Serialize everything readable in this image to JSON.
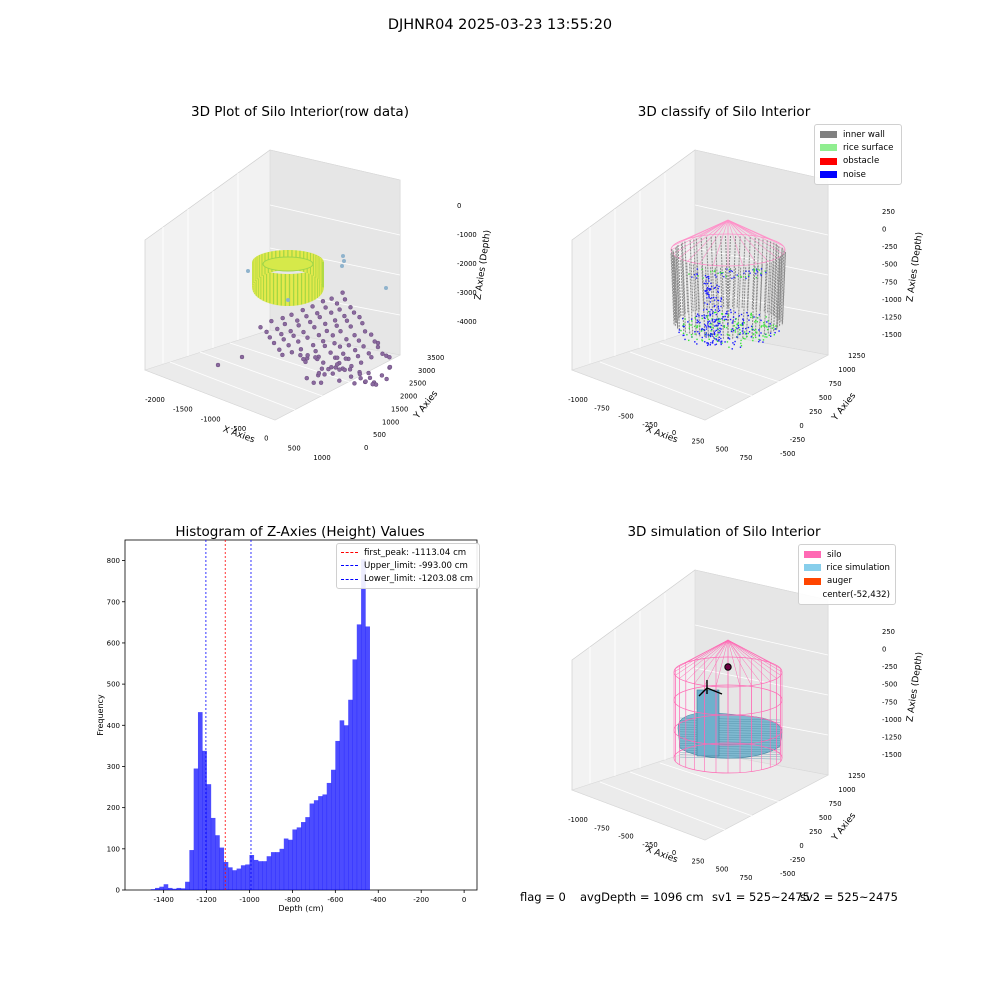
{
  "figure": {
    "suptitle": "DJHNR04 2025-03-23 13:55:20",
    "status": {
      "flag": "flag = 0",
      "avg_depth": "avgDepth = 1096 cm",
      "sv1": "sv1 = 525~2475",
      "sv2": "sv2 = 525~2475"
    }
  },
  "panels": {
    "raw": {
      "title": "3D Plot of Silo Interior(row data)",
      "xlabel": "X Axies",
      "ylabel": "Y Axies",
      "zlabel": "Z Axies (Depth)",
      "xticks": [
        "-2000",
        "-1500",
        "-1000",
        "-500",
        "0",
        "500",
        "1000"
      ],
      "yticks": [
        "0",
        "500",
        "1000",
        "1500",
        "2000",
        "2500",
        "3000",
        "3500"
      ],
      "zticks": [
        "0",
        "-1000",
        "-2000",
        "-3000",
        "-4000"
      ]
    },
    "classify": {
      "title": "3D classify of Silo Interior",
      "xlabel": "X Axies",
      "ylabel": "Y Axies",
      "zlabel": "Z Axies (Depth)",
      "xticks": [
        "-1000",
        "-750",
        "-500",
        "-250",
        "0",
        "250",
        "500",
        "750"
      ],
      "yticks": [
        "-500",
        "-250",
        "0",
        "250",
        "500",
        "750",
        "1000",
        "1250"
      ],
      "zticks": [
        "250",
        "0",
        "-250",
        "-500",
        "-750",
        "-1000",
        "-1250",
        "-1500"
      ],
      "legend": [
        {
          "label": "inner wall",
          "color": "#808080"
        },
        {
          "label": "rice surface",
          "color": "#90ee90"
        },
        {
          "label": "obstacle",
          "color": "#ff0000"
        },
        {
          "label": "noise",
          "color": "#0000ff"
        }
      ]
    },
    "simulation": {
      "title": "3D simulation of Silo Interior",
      "xlabel": "X Axies",
      "ylabel": "Y Axies",
      "zlabel": "Z Axies (Depth)",
      "xticks": [
        "-1000",
        "-750",
        "-500",
        "-250",
        "0",
        "250",
        "500",
        "750"
      ],
      "yticks": [
        "-500",
        "-250",
        "0",
        "250",
        "500",
        "750",
        "1000",
        "1250"
      ],
      "zticks": [
        "250",
        "0",
        "-250",
        "-500",
        "-750",
        "-1000",
        "-1250",
        "-1500"
      ],
      "legend": [
        {
          "label": "silo",
          "color": "#ff69b4"
        },
        {
          "label": "rice simulation",
          "color": "#87ceeb"
        },
        {
          "label": "auger",
          "color": "#ff4500"
        },
        {
          "label": "center(-52,432)",
          "color": ""
        }
      ]
    }
  },
  "chart_data": [
    {
      "type": "scatter",
      "title": "3D Plot of Silo Interior(row data)",
      "xlabel": "X Axies",
      "ylabel": "Y Axies",
      "zlabel": "Z Axies (Depth)",
      "xlim": [
        -2000,
        1000
      ],
      "ylim": [
        0,
        3500
      ],
      "zlim": [
        -4000,
        0
      ]
    },
    {
      "type": "scatter",
      "title": "3D classify of Silo Interior",
      "xlabel": "X Axies",
      "ylabel": "Y Axies",
      "zlabel": "Z Axies (Depth)",
      "xlim": [
        -1000,
        750
      ],
      "ylim": [
        -500,
        1250
      ],
      "zlim": [
        -1500,
        250
      ],
      "series": [
        {
          "name": "inner wall",
          "color": "#808080"
        },
        {
          "name": "rice surface",
          "color": "#90ee90"
        },
        {
          "name": "obstacle",
          "color": "#ff0000"
        },
        {
          "name": "noise",
          "color": "#0000ff"
        }
      ]
    },
    {
      "type": "bar",
      "title": "Histogram of Z-Axies (Height) Values",
      "xlabel": "Depth (cm)",
      "ylabel": "Frequency",
      "xlim": [
        -1580,
        60
      ],
      "ylim": [
        0,
        850
      ],
      "xticks": [
        -1400,
        -1200,
        -1000,
        -800,
        -600,
        -400,
        -200,
        0
      ],
      "yticks": [
        0,
        100,
        200,
        300,
        400,
        500,
        600,
        700,
        800
      ],
      "bin_start": -1460,
      "bin_width": 20,
      "values": [
        2,
        5,
        8,
        14,
        5,
        3,
        5,
        4,
        20,
        97,
        295,
        432,
        338,
        257,
        175,
        133,
        103,
        68,
        55,
        48,
        52,
        60,
        62,
        85,
        73,
        70,
        70,
        82,
        92,
        92,
        100,
        125,
        122,
        147,
        152,
        165,
        177,
        210,
        218,
        228,
        232,
        260,
        292,
        362,
        412,
        400,
        462,
        560,
        645,
        803,
        640
      ],
      "color": "#0000ff",
      "vlines": [
        {
          "label": "first_peak: -1113.04 cm",
          "x": -1113.04,
          "color": "#ff0000"
        },
        {
          "label": "Upper_limit: -993.00 cm",
          "x": -993.0,
          "color": "#0000ff"
        },
        {
          "label": "Lower_limit: -1203.08 cm",
          "x": -1203.08,
          "color": "#0000ff"
        }
      ]
    },
    {
      "type": "area",
      "title": "3D simulation of Silo Interior",
      "xlabel": "X Axies",
      "ylabel": "Y Axies",
      "zlabel": "Z Axies (Depth)",
      "xlim": [
        -1000,
        750
      ],
      "ylim": [
        -500,
        1250
      ],
      "zlim": [
        -1500,
        250
      ],
      "series": [
        {
          "name": "silo",
          "color": "#ff69b4"
        },
        {
          "name": "rice simulation",
          "color": "#87ceeb"
        },
        {
          "name": "auger",
          "color": "#ff4500"
        },
        {
          "name": "center(-52,432)",
          "color": ""
        }
      ]
    }
  ]
}
